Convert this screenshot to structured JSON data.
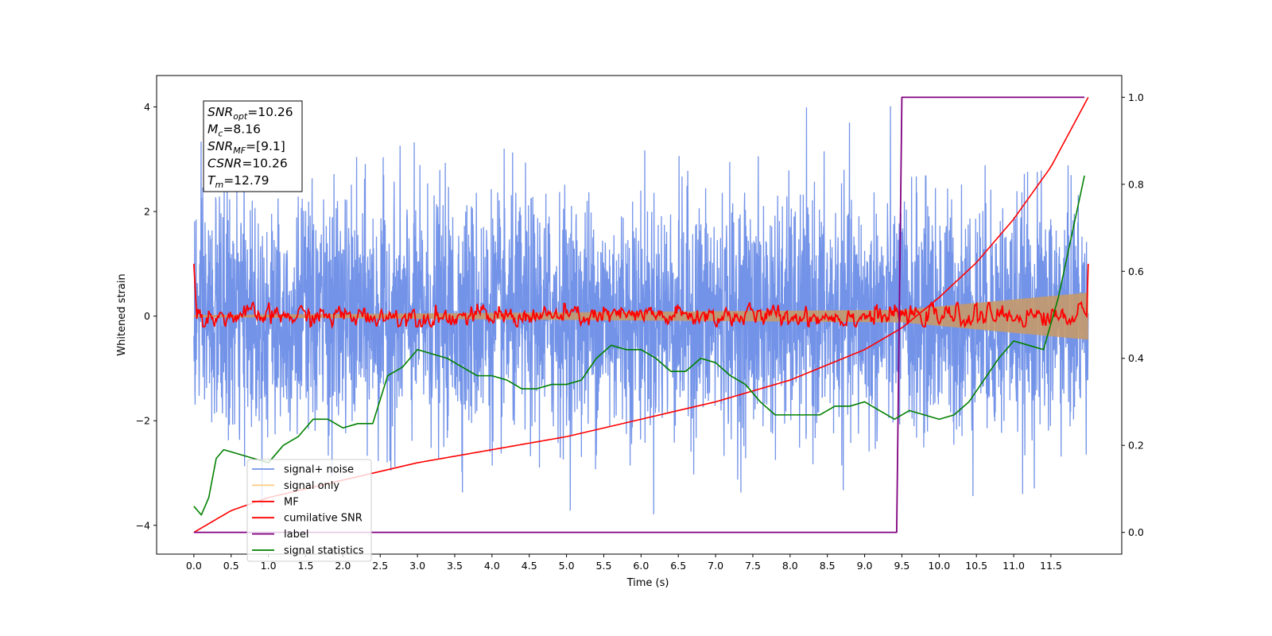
{
  "chart_data": {
    "type": "line",
    "xlabel": "Time (s)",
    "ylabel": "Whitened strain",
    "xlim": [
      -0.5,
      12.45
    ],
    "ylim": [
      -4.55,
      4.6
    ],
    "y2lim": [
      -0.05,
      1.05
    ],
    "xticks": [
      "0.0",
      "0.5",
      "1.0",
      "1.5",
      "2.0",
      "2.5",
      "3.0",
      "3.5",
      "4.0",
      "4.5",
      "5.0",
      "5.5",
      "6.0",
      "6.5",
      "7.0",
      "7.5",
      "8.0",
      "8.5",
      "9.0",
      "9.5",
      "10.0",
      "10.5",
      "11.0",
      "11.5"
    ],
    "yticks": [
      "−4",
      "−2",
      "0",
      "2",
      "4"
    ],
    "y2ticks": [
      "0.0",
      "0.2",
      "0.4",
      "0.6",
      "0.8",
      "1.0"
    ],
    "annotation": [
      {
        "name": "SNR",
        "sub": "opt",
        "value": "=10.26"
      },
      {
        "name": "M",
        "sub": "c",
        "value": "=8.16"
      },
      {
        "name": "SNR",
        "sub": "MF",
        "value": "=[9.1]"
      },
      {
        "name": "CSNR",
        "sub": "",
        "value": "=10.26"
      },
      {
        "name": "T",
        "sub": "m",
        "value": "=12.79"
      }
    ],
    "legend_position": "lower-left",
    "legend": [
      {
        "label": "signal+ noise",
        "color": "#7393e8"
      },
      {
        "label": "signal only",
        "color": "#ffcb80"
      },
      {
        "label": "MF",
        "color": "#ff0000"
      },
      {
        "label": "cumilative SNR",
        "color": "#ff0000"
      },
      {
        "label": "label",
        "color": "#800080"
      },
      {
        "label": "signal statistics",
        "color": "#008000"
      }
    ],
    "series": [
      {
        "name": "signal+ noise",
        "axis": "left",
        "note": "white noise, std ≈ 1.1, 0.0–12.0 s"
      },
      {
        "name": "signal only",
        "axis": "left",
        "envelope": [
          [
            0.0,
            0.02
          ],
          [
            9.5,
            0.12
          ],
          [
            12.0,
            0.45
          ]
        ]
      },
      {
        "name": "MF",
        "axis": "left",
        "note": "oscillates around 0, amplitude ≈ 0.15, starts/ends at 1.0"
      },
      {
        "name": "cumilative SNR",
        "axis": "right",
        "x": [
          0.0,
          0.5,
          1.0,
          2.0,
          3.0,
          4.0,
          5.0,
          6.0,
          7.0,
          8.0,
          9.0,
          9.5,
          10.0,
          10.5,
          11.0,
          11.5,
          12.0
        ],
        "y": [
          0.0,
          0.05,
          0.08,
          0.12,
          0.16,
          0.19,
          0.22,
          0.26,
          0.3,
          0.35,
          0.42,
          0.47,
          0.54,
          0.62,
          0.72,
          0.84,
          1.0
        ]
      },
      {
        "name": "label",
        "axis": "right",
        "x": [
          0.0,
          9.43,
          9.5,
          11.95
        ],
        "y": [
          0.0,
          0.0,
          1.0,
          1.0
        ]
      },
      {
        "name": "signal statistics",
        "axis": "right",
        "x": [
          0.0,
          0.1,
          0.2,
          0.3,
          0.4,
          0.6,
          0.8,
          1.0,
          1.2,
          1.4,
          1.6,
          1.8,
          2.0,
          2.2,
          2.4,
          2.6,
          2.8,
          3.0,
          3.2,
          3.4,
          3.6,
          3.8,
          4.0,
          4.2,
          4.4,
          4.6,
          4.8,
          5.0,
          5.2,
          5.4,
          5.6,
          5.8,
          6.0,
          6.2,
          6.4,
          6.6,
          6.8,
          7.0,
          7.2,
          7.4,
          7.6,
          7.8,
          8.0,
          8.2,
          8.4,
          8.6,
          8.8,
          9.0,
          9.2,
          9.4,
          9.6,
          9.8,
          10.0,
          10.2,
          10.4,
          10.6,
          10.8,
          11.0,
          11.2,
          11.4,
          11.6,
          11.8,
          11.95
        ],
        "y": [
          0.06,
          0.04,
          0.08,
          0.17,
          0.19,
          0.18,
          0.17,
          0.16,
          0.2,
          0.22,
          0.26,
          0.26,
          0.24,
          0.25,
          0.25,
          0.36,
          0.38,
          0.42,
          0.41,
          0.4,
          0.38,
          0.36,
          0.36,
          0.35,
          0.33,
          0.33,
          0.34,
          0.34,
          0.35,
          0.4,
          0.43,
          0.42,
          0.42,
          0.4,
          0.37,
          0.37,
          0.4,
          0.39,
          0.36,
          0.34,
          0.3,
          0.27,
          0.27,
          0.27,
          0.27,
          0.29,
          0.29,
          0.3,
          0.28,
          0.26,
          0.28,
          0.27,
          0.26,
          0.27,
          0.3,
          0.35,
          0.4,
          0.44,
          0.43,
          0.42,
          0.54,
          0.7,
          0.82
        ]
      }
    ]
  }
}
